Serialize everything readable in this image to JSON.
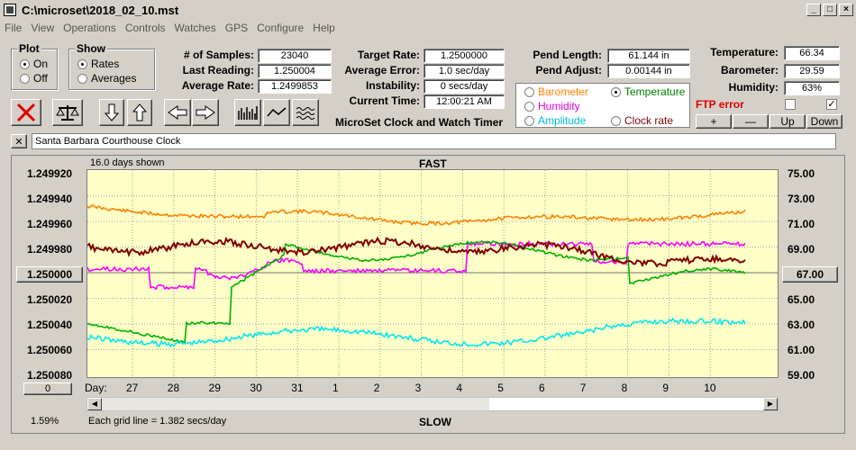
{
  "window": {
    "title": "C:\\microset\\2018_02_10.mst"
  },
  "menu": [
    "File",
    "View",
    "Operations",
    "Controls",
    "Watches",
    "GPS",
    "Configure",
    "Help"
  ],
  "plot": {
    "title": "Plot",
    "on": "On",
    "off": "Off"
  },
  "show": {
    "title": "Show",
    "rates": "Rates",
    "averages": "Averages"
  },
  "stats": {
    "samples_label": "# of Samples:",
    "samples": "23040",
    "last_label": "Last Reading:",
    "last": "1.250004",
    "avg_label": "Average Rate:",
    "avg": "1.2499853",
    "target_label": "Target Rate:",
    "target": "1.2500000",
    "avgerr_label": "Average Error:",
    "avgerr": "1.0 sec/day",
    "instab_label": "Instability:",
    "instab": "0 secs/day",
    "time_label": "Current Time:",
    "time": "12:00:21 AM",
    "pendlen_label": "Pend Length:",
    "pendlen": "61.144 in",
    "pendadj_label": "Pend Adjust:",
    "pendadj": "0.00144 in",
    "temp_label": "Temperature:",
    "temp": "66.34",
    "baro_label": "Barometer:",
    "baro": "29.59",
    "hum_label": "Humidity:",
    "hum": "63%"
  },
  "app_name": "MicroSet Clock and Watch Timer",
  "sensors": {
    "barometer": "Barometer",
    "temperature": "Temperature",
    "humidity": "Humidity",
    "amplitude": "Amplitude",
    "clockrate": "Clock rate"
  },
  "ftp": "FTP error",
  "adj": {
    "plus": "+",
    "minus": "—",
    "up": "Up",
    "down": "Down"
  },
  "clock_name": "Santa Barbara Courthouse Clock",
  "chart": {
    "days_shown": "16.0 days shown",
    "fast": "FAST",
    "slow": "SLOW",
    "grid_note": "Each grid line = 1.382 secs/day",
    "left_ticks": [
      "1.249920",
      "1.249940",
      "1.249960",
      "1.249980",
      "1.250000",
      "1.250020",
      "1.250040",
      "1.250060",
      "1.250080"
    ],
    "right_ticks": [
      "75.00",
      "73.00",
      "71.00",
      "69.00",
      "67.00",
      "65.00",
      "63.00",
      "61.00",
      "59.00"
    ],
    "center_left": "1.250000",
    "center_right": "67.00",
    "day_label": "Day:",
    "days": [
      "27",
      "28",
      "29",
      "30",
      "31",
      "1",
      "2",
      "3",
      "4",
      "5",
      "6",
      "7",
      "8",
      "9",
      "10"
    ],
    "zero_btn": "0",
    "pct": "1.59%"
  },
  "colors": {
    "orange": "#ff8000",
    "maroon": "#800000",
    "green": "#00b000",
    "magenta": "#ff00ff",
    "cyan": "#00e8f0"
  }
}
